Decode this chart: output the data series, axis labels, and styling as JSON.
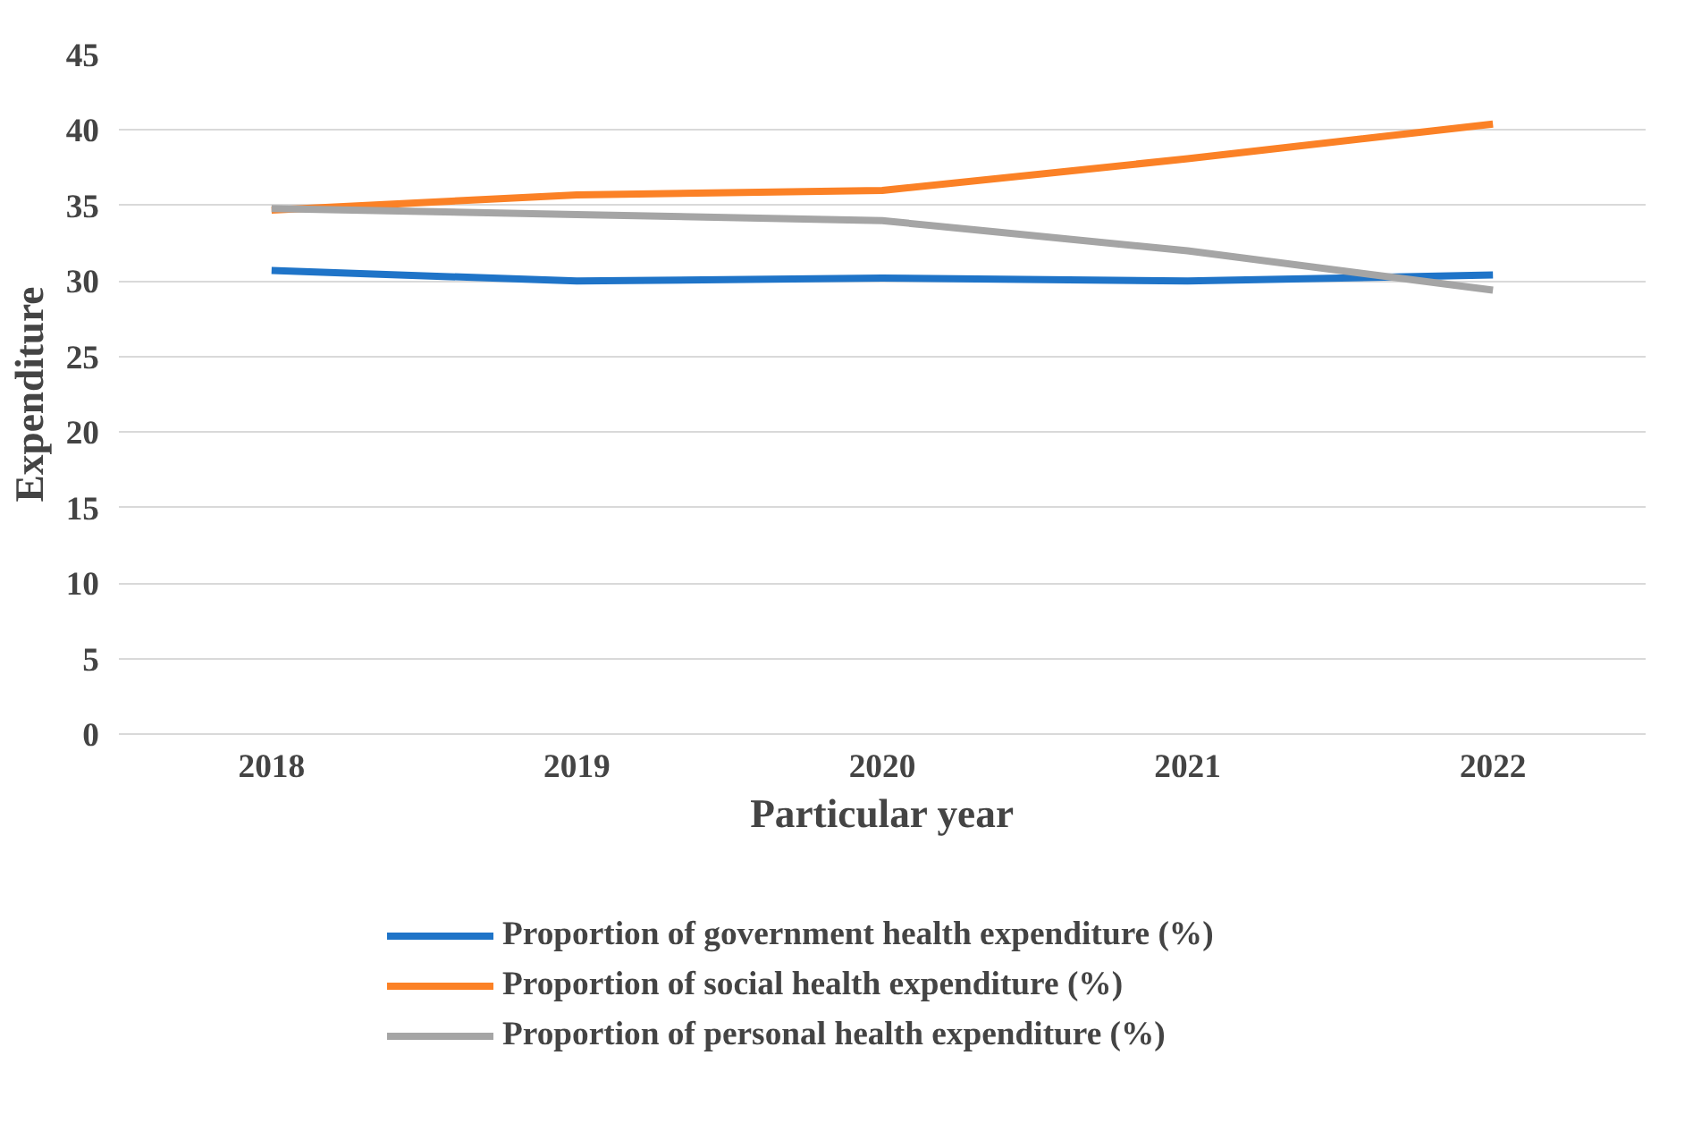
{
  "chart_data": {
    "type": "line",
    "xlabel": "Particular year",
    "ylabel": "Expenditure",
    "categories": [
      "2018",
      "2019",
      "2020",
      "2021",
      "2022"
    ],
    "series": [
      {
        "name": "Proportion of government health expenditure (%)",
        "color": "#1f74c8",
        "values": [
          30.7,
          30.0,
          30.2,
          30.0,
          30.4
        ]
      },
      {
        "name": "Proportion of social health expenditure (%)",
        "color": "#fb8126",
        "values": [
          34.7,
          35.7,
          36.0,
          38.1,
          40.4
        ]
      },
      {
        "name": "Proportion of personal health expenditure (%)",
        "color": "#a5a5a5",
        "values": [
          34.8,
          34.4,
          34.0,
          32.0,
          29.4
        ]
      }
    ],
    "ylim": [
      0,
      45
    ],
    "yticks": [
      0,
      5,
      10,
      15,
      20,
      25,
      30,
      35,
      40,
      45
    ],
    "grid": "y",
    "legend": "bottom",
    "marker": "none",
    "line_style": "solid"
  }
}
